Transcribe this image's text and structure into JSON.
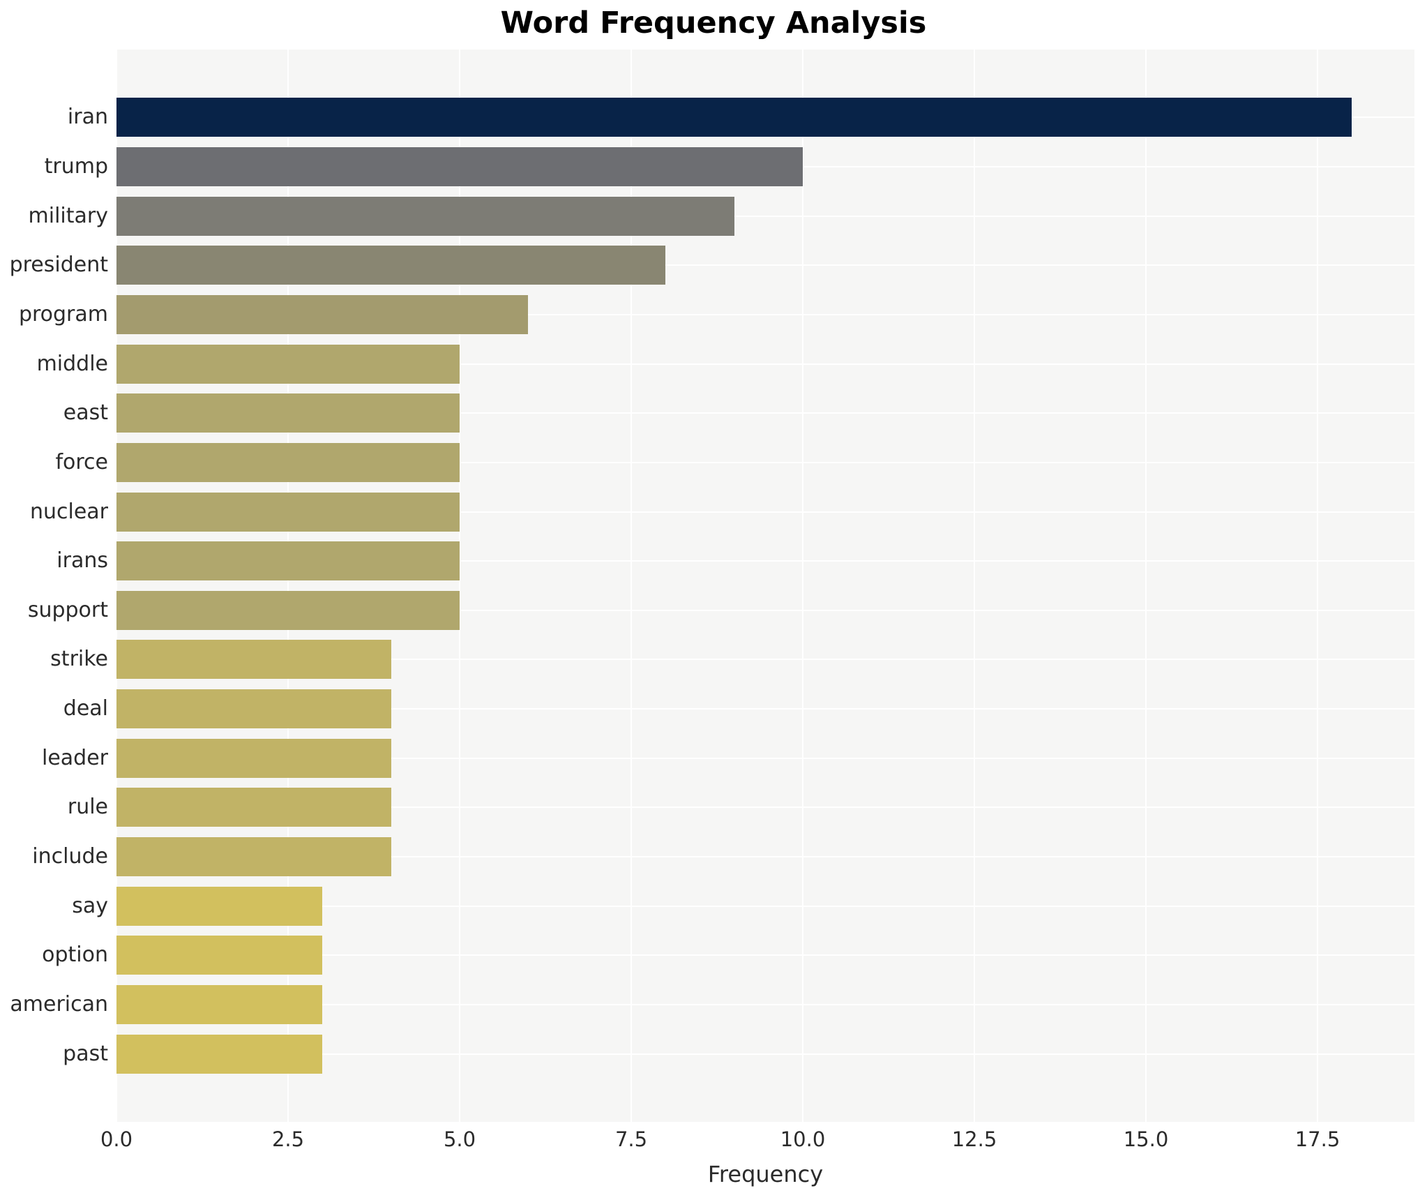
{
  "title": "Word Frequency Analysis",
  "x_axis_label": "Frequency",
  "chart_data": {
    "type": "bar",
    "orientation": "horizontal",
    "title": "Word Frequency Analysis",
    "xlabel": "Frequency",
    "ylabel": "",
    "categories": [
      "iran",
      "trump",
      "military",
      "president",
      "program",
      "middle",
      "east",
      "force",
      "nuclear",
      "irans",
      "support",
      "strike",
      "deal",
      "leader",
      "rule",
      "include",
      "say",
      "option",
      "american",
      "past"
    ],
    "values": [
      18,
      10,
      9,
      8,
      6,
      5,
      5,
      5,
      5,
      5,
      5,
      4,
      4,
      4,
      4,
      4,
      3,
      3,
      3,
      3
    ],
    "bar_colors": [
      "#082348",
      "#6d6e72",
      "#7d7c75",
      "#898672",
      "#a39b6e",
      "#b0a76d",
      "#b0a76d",
      "#b0a76d",
      "#b0a76d",
      "#b0a76d",
      "#b0a76d",
      "#c1b366",
      "#c1b366",
      "#c1b366",
      "#c1b366",
      "#c1b366",
      "#d2c05e",
      "#d2c05e",
      "#d2c05e",
      "#d2c05e"
    ],
    "xlim": [
      0,
      18.91
    ],
    "xticks": [
      0,
      2.5,
      5,
      7.5,
      10,
      12.5,
      15,
      17.5
    ],
    "xtick_labels": [
      "0.0",
      "2.5",
      "5.0",
      "7.5",
      "10.0",
      "12.5",
      "15.0",
      "17.5"
    ],
    "legend": "none",
    "grid": "white major vertical gridlines and per-category horizontal gridlines on light gray panel",
    "panel_bg_color": "#f6f6f5",
    "grid_color": "#ffffff",
    "text_color": "#2b2b2b",
    "title_color": "#000000"
  }
}
